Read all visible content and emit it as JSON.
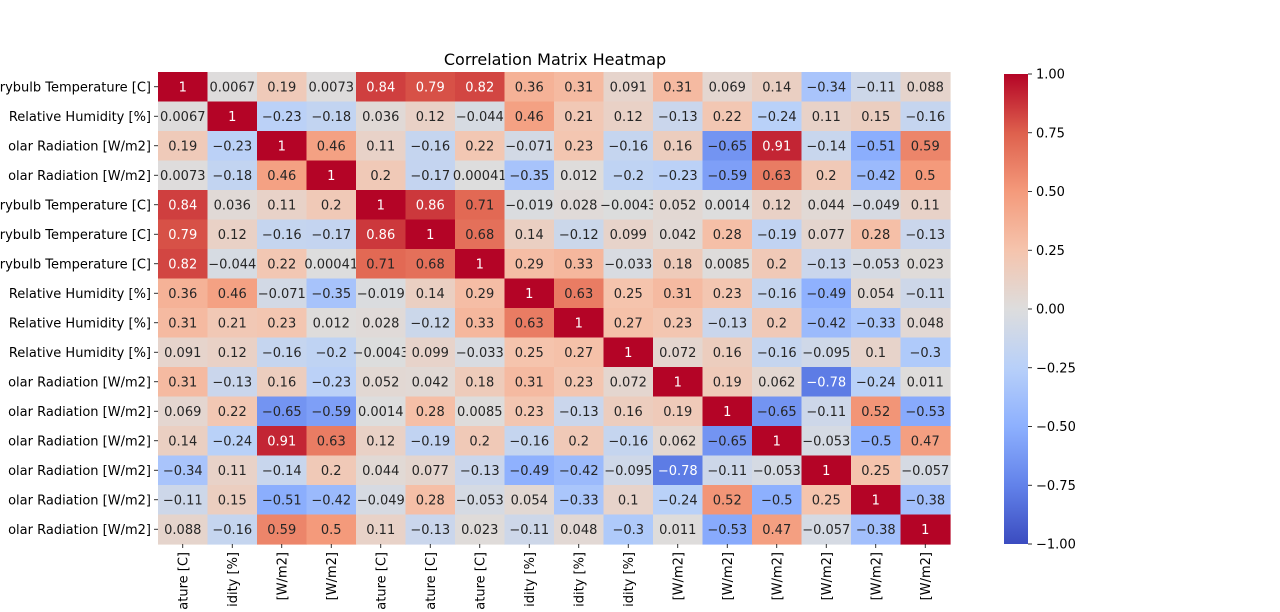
{
  "chart_data": {
    "type": "heatmap",
    "title": "Correlation Matrix Heatmap",
    "row_labels": [
      "rybulb Temperature [C]",
      "Relative Humidity [%]",
      "olar Radiation [W/m2]",
      "olar Radiation [W/m2]",
      "rybulb Temperature [C]",
      "rybulb Temperature [C]",
      "rybulb Temperature [C]",
      "Relative Humidity [%]",
      "Relative Humidity [%]",
      "Relative Humidity [%]",
      "olar Radiation [W/m2]",
      "olar Radiation [W/m2]",
      "olar Radiation [W/m2]",
      "olar Radiation [W/m2]",
      "olar Radiation [W/m2]",
      "olar Radiation [W/m2]"
    ],
    "col_labels": [
      "ature [C]",
      "idity [%]",
      "[W/m2]",
      "[W/m2]",
      "ature [C]",
      "ature [C]",
      "ature [C]",
      "idity [%]",
      "idity [%]",
      "idity [%]",
      "[W/m2]",
      "[W/m2]",
      "[W/m2]",
      "[W/m2]",
      "[W/m2]",
      "[W/m2]"
    ],
    "values": [
      [
        1,
        0.0067,
        0.19,
        0.0073,
        0.84,
        0.79,
        0.82,
        0.36,
        0.31,
        0.091,
        0.31,
        0.069,
        0.14,
        -0.34,
        -0.11,
        0.088
      ],
      [
        0.0067,
        1,
        -0.23,
        -0.18,
        0.036,
        0.12,
        -0.044,
        0.46,
        0.21,
        0.12,
        -0.13,
        0.22,
        -0.24,
        0.11,
        0.15,
        -0.16
      ],
      [
        0.19,
        -0.23,
        1,
        0.46,
        0.11,
        -0.16,
        0.22,
        -0.071,
        0.23,
        -0.16,
        0.16,
        -0.65,
        0.91,
        -0.14,
        -0.51,
        0.59
      ],
      [
        0.0073,
        -0.18,
        0.46,
        1,
        0.2,
        -0.17,
        0.00041,
        -0.35,
        0.012,
        -0.2,
        -0.23,
        -0.59,
        0.63,
        0.2,
        -0.42,
        0.5
      ],
      [
        0.84,
        0.036,
        0.11,
        0.2,
        1,
        0.86,
        0.71,
        -0.019,
        0.028,
        -0.0043,
        0.052,
        0.0014,
        0.12,
        0.044,
        -0.049,
        0.11
      ],
      [
        0.79,
        0.12,
        -0.16,
        -0.17,
        0.86,
        1,
        0.68,
        0.14,
        -0.12,
        0.099,
        0.042,
        0.28,
        -0.19,
        0.077,
        0.28,
        -0.13
      ],
      [
        0.82,
        -0.044,
        0.22,
        0.00041,
        0.71,
        0.68,
        1,
        0.29,
        0.33,
        -0.033,
        0.18,
        0.0085,
        0.2,
        -0.13,
        -0.053,
        0.023
      ],
      [
        0.36,
        0.46,
        -0.071,
        -0.35,
        -0.019,
        0.14,
        0.29,
        1,
        0.63,
        0.25,
        0.31,
        0.23,
        -0.16,
        -0.49,
        0.054,
        -0.11
      ],
      [
        0.31,
        0.21,
        0.23,
        0.012,
        0.028,
        -0.12,
        0.33,
        0.63,
        1,
        0.27,
        0.23,
        -0.13,
        0.2,
        -0.42,
        -0.33,
        0.048
      ],
      [
        0.091,
        0.12,
        -0.16,
        -0.2,
        -0.0043,
        0.099,
        -0.033,
        0.25,
        0.27,
        1,
        0.072,
        0.16,
        -0.16,
        -0.095,
        0.1,
        -0.3
      ],
      [
        0.31,
        -0.13,
        0.16,
        -0.23,
        0.052,
        0.042,
        0.18,
        0.31,
        0.23,
        0.072,
        1,
        0.19,
        0.062,
        -0.78,
        -0.24,
        0.011
      ],
      [
        0.069,
        0.22,
        -0.65,
        -0.59,
        0.0014,
        0.28,
        0.0085,
        0.23,
        -0.13,
        0.16,
        0.19,
        1,
        -0.65,
        -0.11,
        0.52,
        -0.53
      ],
      [
        0.14,
        -0.24,
        0.91,
        0.63,
        0.12,
        -0.19,
        0.2,
        -0.16,
        0.2,
        -0.16,
        0.062,
        -0.65,
        1,
        -0.053,
        -0.5,
        0.47
      ],
      [
        -0.34,
        0.11,
        -0.14,
        0.2,
        0.044,
        0.077,
        -0.13,
        -0.49,
        -0.42,
        -0.095,
        -0.78,
        -0.11,
        -0.053,
        1,
        0.25,
        -0.057
      ],
      [
        -0.11,
        0.15,
        -0.51,
        -0.42,
        -0.049,
        0.28,
        -0.053,
        0.054,
        -0.33,
        0.1,
        -0.24,
        0.52,
        -0.5,
        0.25,
        1,
        -0.38
      ],
      [
        0.088,
        -0.16,
        0.59,
        0.5,
        0.11,
        -0.13,
        0.023,
        -0.11,
        0.048,
        -0.3,
        0.011,
        -0.53,
        0.47,
        -0.057,
        -0.38,
        1
      ]
    ],
    "colormap": "coolwarm",
    "colorbar": {
      "vmin": -1,
      "vmax": 1,
      "ticks": [
        1.0,
        0.75,
        0.5,
        0.25,
        0.0,
        -0.25,
        -0.5,
        -0.75,
        -1.0
      ],
      "tick_labels": [
        "1.00",
        "0.75",
        "0.50",
        "0.25",
        "0.00",
        "−0.25",
        "−0.50",
        "−0.75",
        "−1.00"
      ]
    },
    "annotations": true,
    "legend": "colorbar-right"
  }
}
